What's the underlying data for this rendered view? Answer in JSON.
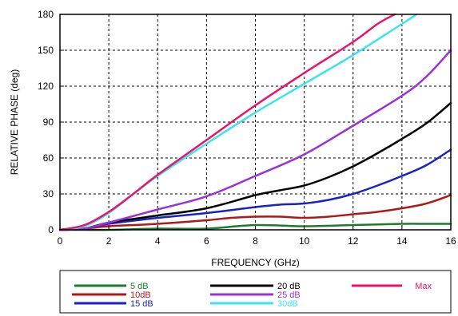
{
  "chart_data": {
    "type": "line",
    "xlabel": "FREQUENCY (GHz)",
    "ylabel": "RELATIVE PHASE (deg)",
    "xlim": [
      0,
      16
    ],
    "ylim": [
      0,
      180
    ],
    "xticks": [
      "0",
      "2",
      "4",
      "6",
      "8",
      "10",
      "12",
      "14",
      "16"
    ],
    "yticks": [
      "0",
      "30",
      "60",
      "90",
      "120",
      "150",
      "180"
    ],
    "grid": true,
    "legend_position": "bottom",
    "series": [
      {
        "name": "5 dB",
        "color": "#1e7a2e",
        "x": [
          0,
          1,
          2,
          4,
          6,
          8,
          10,
          12,
          14,
          15,
          16
        ],
        "y": [
          0,
          0,
          0,
          1,
          1,
          4,
          3,
          4,
          5,
          5,
          5
        ]
      },
      {
        "name": "10dB",
        "color": "#b01818",
        "x": [
          0,
          1,
          2,
          4,
          6,
          7,
          8,
          9,
          10,
          11,
          12,
          13,
          14,
          15,
          16
        ],
        "y": [
          0,
          1,
          3,
          5,
          8,
          10,
          11,
          11,
          10,
          11,
          13,
          15,
          18,
          22,
          29
        ]
      },
      {
        "name": "15 dB",
        "color": "#1a22c4",
        "x": [
          0,
          1,
          2,
          4,
          6,
          8,
          9,
          10,
          11,
          12,
          13,
          14,
          15,
          16
        ],
        "y": [
          0,
          1,
          5,
          10,
          14,
          19,
          21,
          22,
          25,
          30,
          37,
          45,
          54,
          67
        ]
      },
      {
        "name": "20 dB",
        "color": "#000000",
        "x": [
          0,
          1,
          2,
          4,
          6,
          8,
          9,
          10,
          11,
          12,
          13,
          14,
          15,
          16
        ],
        "y": [
          0,
          1,
          6,
          12,
          18,
          29,
          33,
          37,
          44,
          53,
          64,
          76,
          89,
          106
        ]
      },
      {
        "name": "25 dB",
        "color": "#9b30d9",
        "x": [
          0,
          1,
          2,
          4,
          6,
          8,
          10,
          12,
          14,
          15,
          16
        ],
        "y": [
          0,
          1,
          6,
          17,
          28,
          45,
          63,
          87,
          112,
          128,
          150
        ]
      },
      {
        "name": "30dB",
        "color": "#3ee3f0",
        "x": [
          0,
          1,
          2,
          3,
          4,
          6,
          8,
          10,
          12,
          14,
          14.6
        ],
        "y": [
          0,
          3,
          14,
          30,
          45,
          72,
          98,
          122,
          146,
          172,
          180
        ]
      },
      {
        "name": "Max",
        "color": "#e8146a",
        "x": [
          0,
          1,
          2,
          3,
          4,
          6,
          8,
          10,
          12,
          13,
          13.7
        ],
        "y": [
          0,
          4,
          15,
          30,
          46,
          75,
          104,
          131,
          157,
          172,
          180
        ]
      }
    ]
  }
}
